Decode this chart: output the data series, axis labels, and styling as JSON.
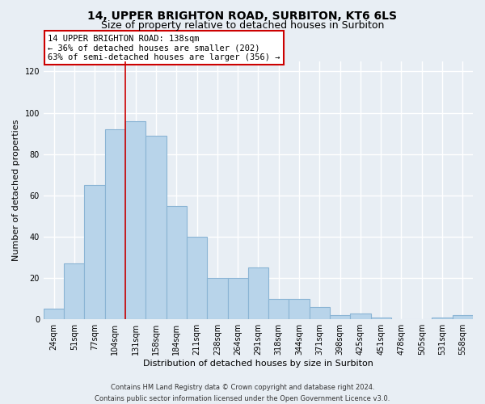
{
  "title": "14, UPPER BRIGHTON ROAD, SURBITON, KT6 6LS",
  "subtitle": "Size of property relative to detached houses in Surbiton",
  "xlabel": "Distribution of detached houses by size in Surbiton",
  "ylabel": "Number of detached properties",
  "footer_line1": "Contains HM Land Registry data © Crown copyright and database right 2024.",
  "footer_line2": "Contains public sector information licensed under the Open Government Licence v3.0.",
  "bar_labels": [
    "24sqm",
    "51sqm",
    "77sqm",
    "104sqm",
    "131sqm",
    "158sqm",
    "184sqm",
    "211sqm",
    "238sqm",
    "264sqm",
    "291sqm",
    "318sqm",
    "344sqm",
    "371sqm",
    "398sqm",
    "425sqm",
    "451sqm",
    "478sqm",
    "505sqm",
    "531sqm",
    "558sqm"
  ],
  "bar_values": [
    5,
    27,
    65,
    92,
    96,
    89,
    55,
    40,
    20,
    20,
    25,
    10,
    10,
    6,
    2,
    3,
    1,
    0,
    0,
    1,
    2
  ],
  "bar_color": "#b8d4ea",
  "bar_edge_color": "#8ab4d4",
  "highlight_bar_index": 4,
  "highlight_color": "#cc0000",
  "annotation_text": "14 UPPER BRIGHTON ROAD: 138sqm\n← 36% of detached houses are smaller (202)\n63% of semi-detached houses are larger (356) →",
  "annotation_box_facecolor": "#ffffff",
  "annotation_box_edgecolor": "#cc0000",
  "ylim": [
    0,
    125
  ],
  "yticks": [
    0,
    20,
    40,
    60,
    80,
    100,
    120
  ],
  "background_color": "#e8eef4",
  "plot_background_color": "#e8eef4",
  "grid_color": "#ffffff",
  "title_fontsize": 10,
  "subtitle_fontsize": 9,
  "axis_label_fontsize": 8,
  "tick_fontsize": 7,
  "annotation_fontsize": 7.5,
  "footer_fontsize": 6
}
